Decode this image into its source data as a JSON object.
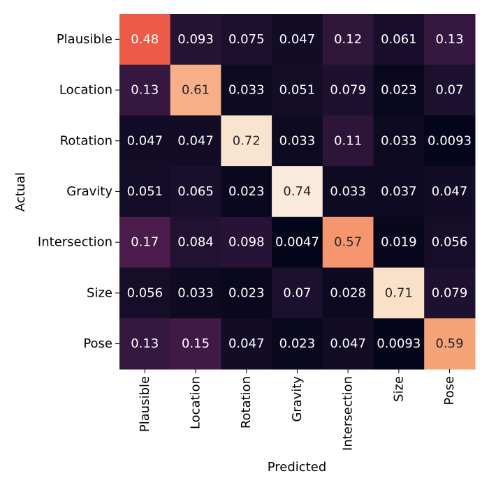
{
  "chart_data": {
    "type": "heatmap",
    "title": "",
    "xlabel": "Predicted",
    "ylabel": "Actual",
    "x_categories": [
      "Plausible",
      "Location",
      "Rotation",
      "Gravity",
      "Intersection",
      "Size",
      "Pose"
    ],
    "y_categories": [
      "Plausible",
      "Location",
      "Rotation",
      "Gravity",
      "Intersection",
      "Size",
      "Pose"
    ],
    "values": [
      [
        0.48,
        0.093,
        0.075,
        0.047,
        0.12,
        0.061,
        0.13
      ],
      [
        0.13,
        0.61,
        0.033,
        0.051,
        0.079,
        0.023,
        0.07
      ],
      [
        0.047,
        0.047,
        0.72,
        0.033,
        0.11,
        0.033,
        0.0093
      ],
      [
        0.051,
        0.065,
        0.023,
        0.74,
        0.033,
        0.037,
        0.047
      ],
      [
        0.17,
        0.084,
        0.098,
        0.0047,
        0.57,
        0.019,
        0.056
      ],
      [
        0.056,
        0.033,
        0.023,
        0.07,
        0.028,
        0.71,
        0.079
      ],
      [
        0.13,
        0.15,
        0.047,
        0.023,
        0.047,
        0.0093,
        0.59
      ]
    ],
    "labels": [
      [
        "0.48",
        "0.093",
        "0.075",
        "0.047",
        "0.12",
        "0.061",
        "0.13"
      ],
      [
        "0.13",
        "0.61",
        "0.033",
        "0.051",
        "0.079",
        "0.023",
        "0.07"
      ],
      [
        "0.047",
        "0.047",
        "0.72",
        "0.033",
        "0.11",
        "0.033",
        "0.0093"
      ],
      [
        "0.051",
        "0.065",
        "0.023",
        "0.74",
        "0.033",
        "0.037",
        "0.047"
      ],
      [
        "0.17",
        "0.084",
        "0.098",
        "0.0047",
        "0.57",
        "0.019",
        "0.056"
      ],
      [
        "0.056",
        "0.033",
        "0.023",
        "0.07",
        "0.028",
        "0.71",
        "0.079"
      ],
      [
        "0.13",
        "0.15",
        "0.047",
        "0.023",
        "0.047",
        "0.0093",
        "0.59"
      ]
    ],
    "colormap": "rocket",
    "value_range": [
      0.0047,
      0.74
    ],
    "colorbar": false
  }
}
